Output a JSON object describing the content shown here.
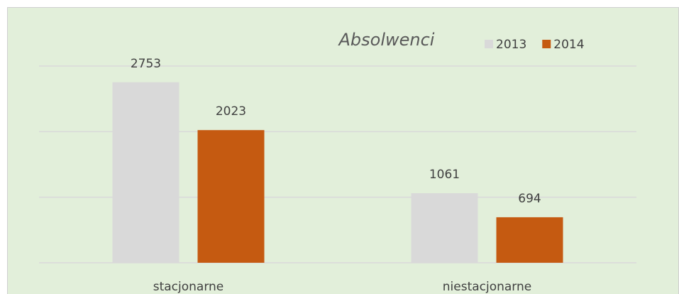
{
  "chart_data": {
    "type": "bar",
    "title": "Absolwenci",
    "categories": [
      "stacjonarne",
      "niestacjonarne"
    ],
    "series": [
      {
        "name": "2013",
        "color": "#d9d9d9",
        "values": [
          2753,
          1061
        ]
      },
      {
        "name": "2014",
        "color": "#c55a11",
        "values": [
          2023,
          694
        ]
      }
    ],
    "ylim": [
      0,
      3000
    ],
    "yticks": [
      0,
      1000,
      2000,
      3000
    ],
    "grid": true,
    "legend": "top-right"
  }
}
